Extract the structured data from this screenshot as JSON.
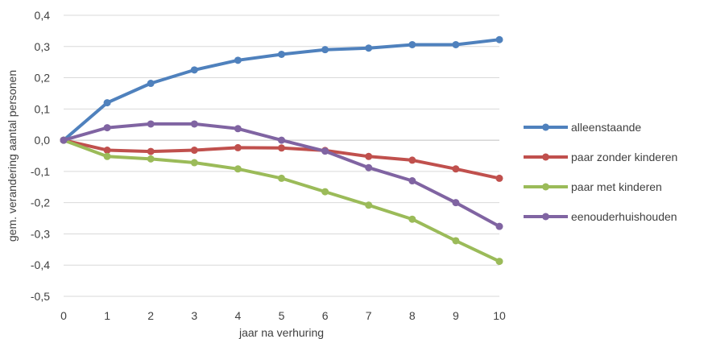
{
  "chart_data": {
    "type": "line",
    "title": "",
    "xlabel": "jaar na verhuring",
    "ylabel": "gem. verandering aantal personen",
    "x": [
      0,
      1,
      2,
      3,
      4,
      5,
      6,
      7,
      8,
      9,
      10
    ],
    "xlim": [
      0,
      10
    ],
    "ylim": [
      -0.5,
      0.4
    ],
    "yticks": [
      0.4,
      0.3,
      0.2,
      0.1,
      0.0,
      -0.1,
      -0.2,
      -0.3,
      -0.4,
      -0.5
    ],
    "ytick_labels": [
      "0,4",
      "0,3",
      "0,2",
      "0,1",
      "0,0",
      "-0,1",
      "-0,2",
      "-0,3",
      "-0,4",
      "-0,5"
    ],
    "xtick_labels": [
      "0",
      "1",
      "2",
      "3",
      "4",
      "5",
      "6",
      "7",
      "8",
      "9",
      "10"
    ],
    "grid": "horizontal",
    "legend_position": "right",
    "series": [
      {
        "name": "alleenstaande",
        "color": "#4f81bd",
        "values": [
          0.0,
          0.12,
          0.182,
          0.225,
          0.256,
          0.275,
          0.29,
          0.295,
          0.306,
          0.306,
          0.322
        ]
      },
      {
        "name": "paar zonder kinderen",
        "color": "#c0504d",
        "values": [
          0.0,
          -0.032,
          -0.036,
          -0.032,
          -0.024,
          -0.025,
          -0.033,
          -0.052,
          -0.064,
          -0.092,
          -0.122
        ]
      },
      {
        "name": "paar met kinderen",
        "color": "#9bbb59",
        "values": [
          0.0,
          -0.052,
          -0.06,
          -0.072,
          -0.092,
          -0.122,
          -0.165,
          -0.208,
          -0.253,
          -0.322,
          -0.388
        ]
      },
      {
        "name": "eenouderhuishouden",
        "color": "#8064a2",
        "values": [
          0.0,
          0.04,
          0.052,
          0.052,
          0.037,
          0.0,
          -0.035,
          -0.088,
          -0.13,
          -0.2,
          -0.276
        ]
      }
    ]
  }
}
